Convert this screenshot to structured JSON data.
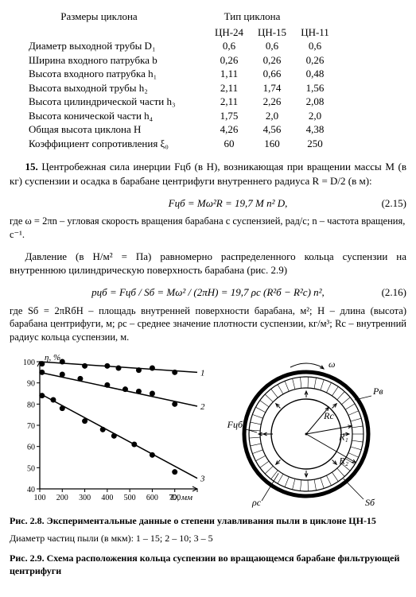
{
  "table": {
    "super_left": "Размеры циклона",
    "super_right": "Тип циклона",
    "col_heads": [
      "ЦН-24",
      "ЦН-15",
      "ЦН-11"
    ],
    "rows": [
      {
        "label": "Диаметр выходной трубы D₁",
        "vals": [
          "0,6",
          "0,6",
          "0,6"
        ]
      },
      {
        "label": "Ширина входного патрубка b",
        "vals": [
          "0,26",
          "0,26",
          "0,26"
        ]
      },
      {
        "label": "Высота входного патрубка h₁",
        "vals": [
          "1,11",
          "0,66",
          "0,48"
        ]
      },
      {
        "label": "Высота выходной трубы h₂",
        "vals": [
          "2,11",
          "1,74",
          "1,56"
        ]
      },
      {
        "label": "Высота цилиндрической части h₃",
        "vals": [
          "2,11",
          "2,26",
          "2,08"
        ]
      },
      {
        "label": "Высота конической части h₄",
        "vals": [
          "1,75",
          "2,0",
          "2,0"
        ]
      },
      {
        "label": "Общая высота циклона H",
        "vals": [
          "4,26",
          "4,56",
          "4,38"
        ]
      },
      {
        "label": "Коэффициент сопротивления ξ₀",
        "vals": [
          "60",
          "160",
          "250"
        ]
      }
    ]
  },
  "p15_lead": "15.",
  "p15_text": " Центробежная сила инерции Fцб (в Н), возникающая при вращении массы M (в кг) суспензии и осадка в барабане центрифуги внутреннего радиуса R = D/2 (в м):",
  "eq1": "Fцб = Mω²R = 19,7 M n² D,",
  "eq1_num": "(2.15)",
  "note1": "где ω = 2πn – угловая скорость вращения барабана с суспензией, рад/с; n – частота вращения, с⁻¹.",
  "p16_text": "Давление (в Н/м² = Па) равномерно распределенного кольца суспензии на внутреннюю цилиндрическую поверхность барабана (рис. 2.9)",
  "eq2": "pцб = Fцб / Sб = Mω² / (2πH) = 19,7 ρc (R²б − R²с) n²,",
  "eq2_num": "(2.16)",
  "note2": "где Sб = 2πRбH – площадь внутренней поверхности барабана, м²; H – длина (высота) барабана центрифуги, м; ρc – среднее значение плотности суспензии, кг/м³; Rс – внутренний радиус кольца суспензии, м.",
  "chart": {
    "type": "scatter-line",
    "background_color": "#ffffff",
    "text_color": "#000000",
    "grid_color": "#000000",
    "ylabel": "η, %",
    "xlabel": "D, мм",
    "xlim": [
      100,
      800
    ],
    "xtick_step": 100,
    "ylim": [
      40,
      100
    ],
    "ytick_step": 10,
    "title_fontsize": 12,
    "label_fontsize": 11,
    "marker_size": 3.5,
    "line_width": 1.5,
    "series": [
      {
        "name": "1",
        "color": "#000000",
        "marker": "circle",
        "approx_line": {
          "x1": 100,
          "y1": 100,
          "x2": 800,
          "y2": 95
        },
        "points": [
          [
            110,
            99
          ],
          [
            200,
            100
          ],
          [
            300,
            98
          ],
          [
            400,
            98
          ],
          [
            450,
            97
          ],
          [
            540,
            96
          ],
          [
            600,
            97
          ],
          [
            700,
            95
          ]
        ]
      },
      {
        "name": "2",
        "color": "#000000",
        "marker": "circle",
        "approx_line": {
          "x1": 100,
          "y1": 95,
          "x2": 800,
          "y2": 79
        },
        "points": [
          [
            110,
            95
          ],
          [
            200,
            94
          ],
          [
            280,
            92
          ],
          [
            400,
            89
          ],
          [
            480,
            87
          ],
          [
            540,
            86
          ],
          [
            600,
            85
          ],
          [
            700,
            80
          ]
        ]
      },
      {
        "name": "3",
        "color": "#000000",
        "marker": "circle",
        "approx_line": {
          "x1": 100,
          "y1": 85,
          "x2": 800,
          "y2": 45
        },
        "points": [
          [
            110,
            84
          ],
          [
            160,
            82
          ],
          [
            200,
            78
          ],
          [
            300,
            72
          ],
          [
            380,
            68
          ],
          [
            430,
            65
          ],
          [
            520,
            61
          ],
          [
            600,
            56
          ],
          [
            700,
            48
          ]
        ]
      }
    ]
  },
  "diagram": {
    "labels": {
      "omega": "ω",
      "Pv": "Pв",
      "Fcb": "Fцб",
      "Rc": "Rс",
      "R1": "R₁",
      "R2": "R₂",
      "rhoc": "ρc",
      "Sb": "Sб"
    },
    "colors": {
      "ring_outer": "#000000",
      "ring_hatch": "#000000",
      "background": "#ffffff"
    }
  },
  "caption_28_lead": "Рис. 2.8. ",
  "caption_28_text": "Экспериментальные данные о степени улавливания пыли в циклоне ЦН-15",
  "caption_28_sub": "Диаметр частиц пыли (в мкм): 1 – 15; 2 – 10; 3 – 5",
  "caption_29_lead": "Рис. 2.9. ",
  "caption_29_text": "Схема расположения кольца суспензии во вращающемся барабане фильтрующей центрифуги"
}
